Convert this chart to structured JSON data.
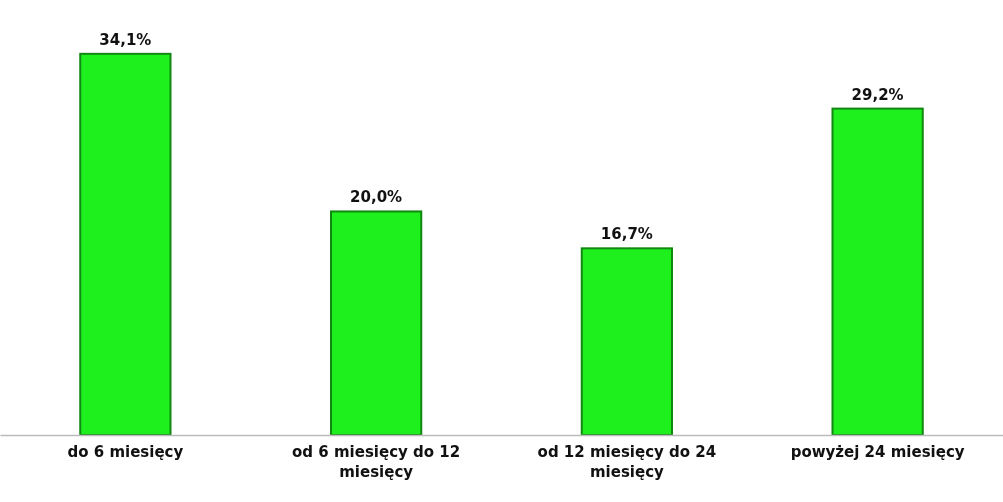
{
  "chart_data": {
    "type": "bar",
    "categories": [
      "do 6 miesięcy",
      "od 6 miesięcy do 12 miesięcy",
      "od 12 miesięcy do 24 miesięcy",
      "powyżej 24 miesięcy"
    ],
    "values": [
      34.1,
      20.0,
      16.7,
      29.2
    ],
    "value_labels": [
      "34,1%",
      "20,0%",
      "16,7%",
      "29,2%"
    ],
    "color": "#1ef01e",
    "tick_labels": "x"
  }
}
